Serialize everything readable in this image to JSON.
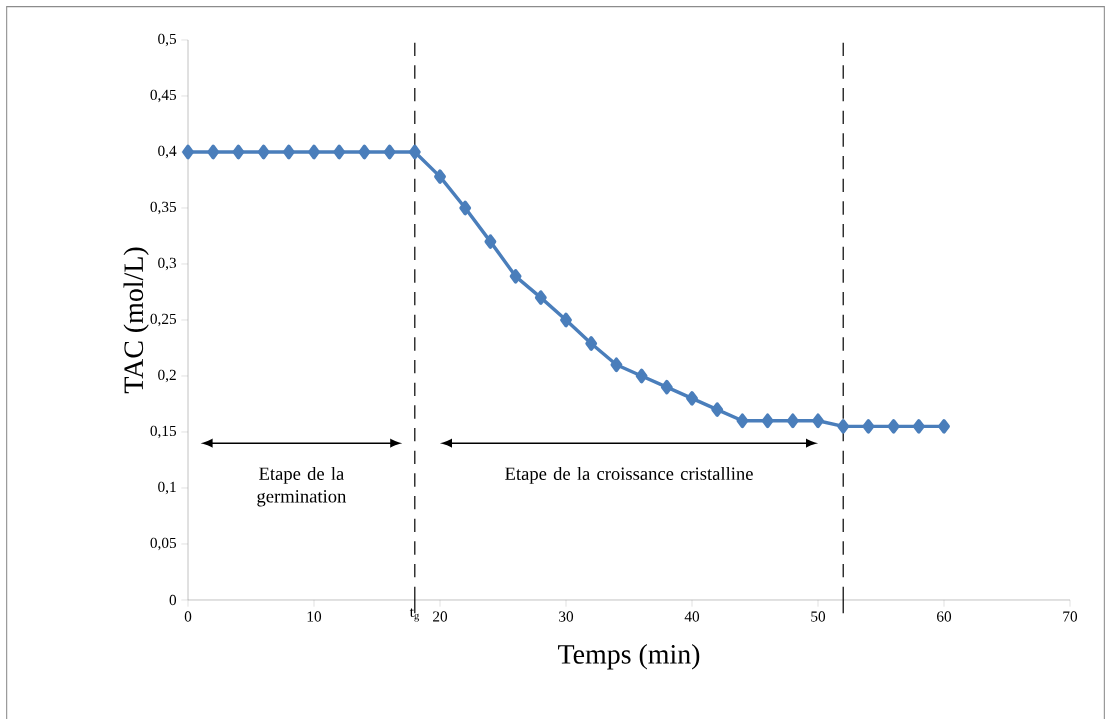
{
  "chart_data": {
    "type": "line",
    "xlabel": "Temps (min)",
    "ylabel": "TAC (mol/L)",
    "x": [
      0,
      2,
      4,
      6,
      8,
      10,
      12,
      14,
      16,
      18,
      20,
      22,
      24,
      26,
      28,
      30,
      32,
      34,
      36,
      38,
      40,
      42,
      44,
      46,
      48,
      50,
      52,
      54,
      56,
      58,
      60
    ],
    "series": [
      {
        "color": "#4a7ebb",
        "values": [
          0.4,
          0.4,
          0.4,
          0.4,
          0.4,
          0.4,
          0.4,
          0.4,
          0.4,
          0.4,
          0.378,
          0.35,
          0.32,
          0.289,
          0.27,
          0.25,
          0.229,
          0.21,
          0.2,
          0.19,
          0.18,
          0.17,
          0.16,
          0.16,
          0.16,
          0.16,
          0.155,
          0.155,
          0.155,
          0.155,
          0.155
        ]
      }
    ],
    "xlim": [
      0,
      70
    ],
    "xticks": [
      0,
      10,
      20,
      30,
      40,
      50,
      60,
      70
    ],
    "ylim": [
      0,
      0.5
    ],
    "yticks": [
      {
        "value": 0,
        "label": "0"
      },
      {
        "value": 0.05,
        "label": "0,05"
      },
      {
        "value": 0.1,
        "label": "0,1"
      },
      {
        "value": 0.15,
        "label": "0,15"
      },
      {
        "value": 0.2,
        "label": "0,2"
      },
      {
        "value": 0.25,
        "label": "0,25"
      },
      {
        "value": 0.3,
        "label": "0,3"
      },
      {
        "value": 0.35,
        "label": "0,35"
      },
      {
        "value": 0.4,
        "label": "0,4"
      },
      {
        "value": 0.45,
        "label": "0,45"
      },
      {
        "value": 0.5,
        "label": "0,5"
      }
    ],
    "ref_lines": [
      {
        "axis": "x",
        "value": 18,
        "label": "t$_{g}$",
        "color": "#000000",
        "line_style": "dashed"
      },
      {
        "axis": "x",
        "value": 52,
        "color": "#000000",
        "line_style": "dashed"
      }
    ],
    "annotations": [
      "Etape de la germination",
      "Etape de la croissance cristalline"
    ],
    "grid": false,
    "marker": "diamond",
    "line_style": "solid"
  }
}
